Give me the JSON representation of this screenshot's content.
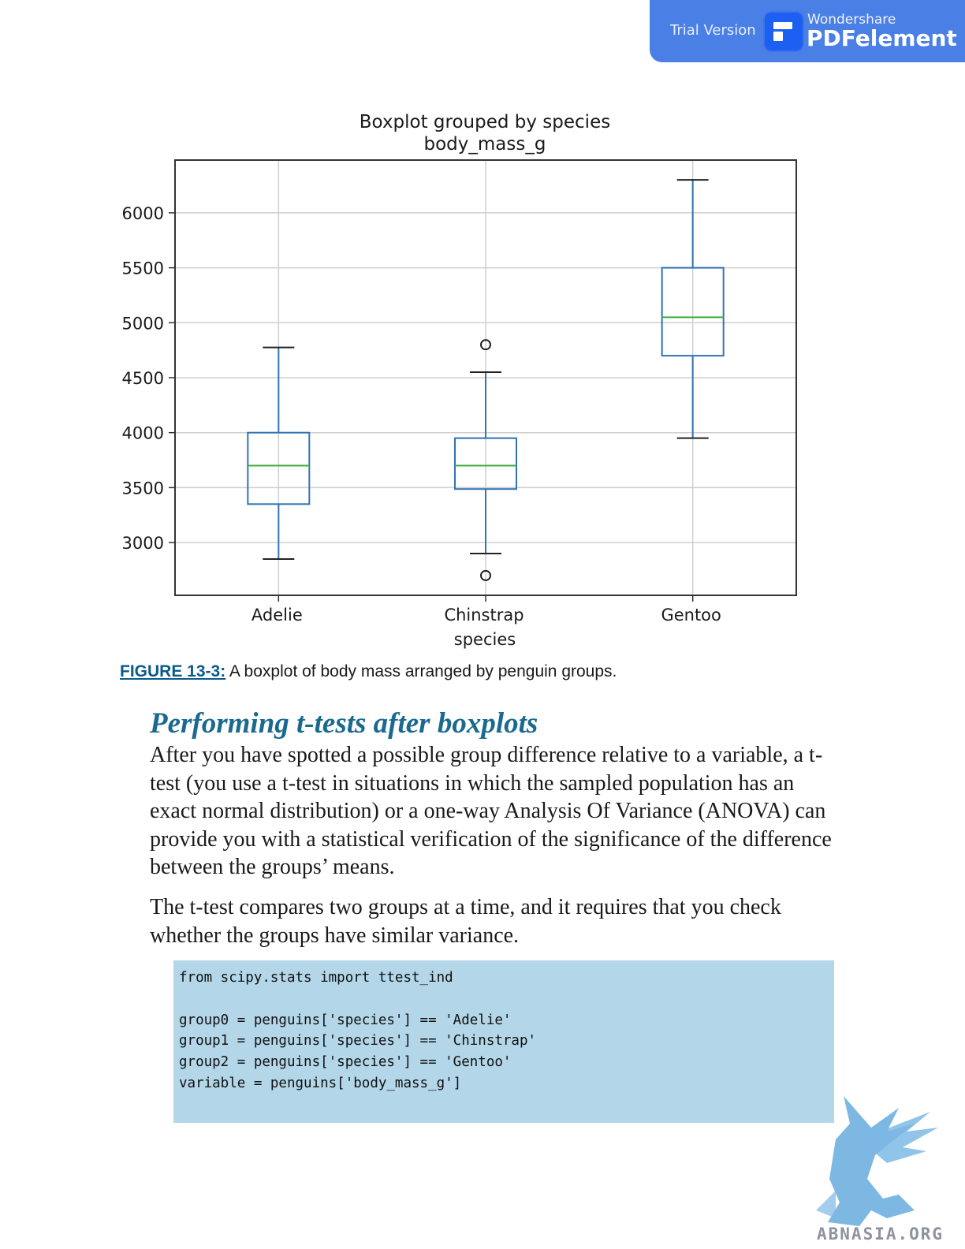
{
  "badge": {
    "trial_label": "Trial Version",
    "brand": "Wondershare",
    "product": "PDFelement",
    "color": "#4a7fe6"
  },
  "chart_data": {
    "type": "boxplot",
    "title": "Boxplot grouped by species",
    "subtitle": "body_mass_g",
    "xlabel": "species",
    "ylabel": "",
    "categories": [
      "Adelie",
      "Chinstrap",
      "Gentoo"
    ],
    "yticks": [
      3000,
      3500,
      4000,
      4500,
      5000,
      5500,
      6000
    ],
    "ylim": [
      2520,
      6480
    ],
    "grid": true,
    "box_color": "#2f74b5",
    "median_color": "#3cae3c",
    "boxes": [
      {
        "category": "Adelie",
        "whisker_low": 2850,
        "q1": 3350,
        "median": 3700,
        "q3": 4000,
        "whisker_high": 4775,
        "outliers": []
      },
      {
        "category": "Chinstrap",
        "whisker_low": 2900,
        "q1": 3487,
        "median": 3700,
        "q3": 3950,
        "whisker_high": 4550,
        "outliers": [
          2700,
          4800
        ]
      },
      {
        "category": "Gentoo",
        "whisker_low": 3950,
        "q1": 4700,
        "median": 5050,
        "q3": 5500,
        "whisker_high": 6300,
        "outliers": []
      }
    ]
  },
  "caption": {
    "label": "FIGURE 13-3:",
    "text": " A boxplot of body mass arranged by penguin groups."
  },
  "section": {
    "heading": "Performing t-tests after boxplots",
    "paragraph1": "After you have spotted a possible group difference relative to a variable, a t-test (you use a t-test in situations in which the sampled population has an exact normal distribution) or a one-way Analysis Of Variance (ANOVA) can provide you with a statistical verification of the significance of the difference between the groups’ means.",
    "paragraph2": "The t-test compares two groups at a time, and it requires that you check whether the groups have similar variance."
  },
  "code": "from scipy.stats import ttest_ind\n\ngroup0 = penguins['species'] == 'Adelie'\ngroup1 = penguins['species'] == 'Chinstrap'\ngroup2 = penguins['species'] == 'Gentoo'\nvariable = penguins['body_mass_g']",
  "watermark": {
    "text": "ABNASIA.ORG",
    "icon": "griffin-logo"
  }
}
